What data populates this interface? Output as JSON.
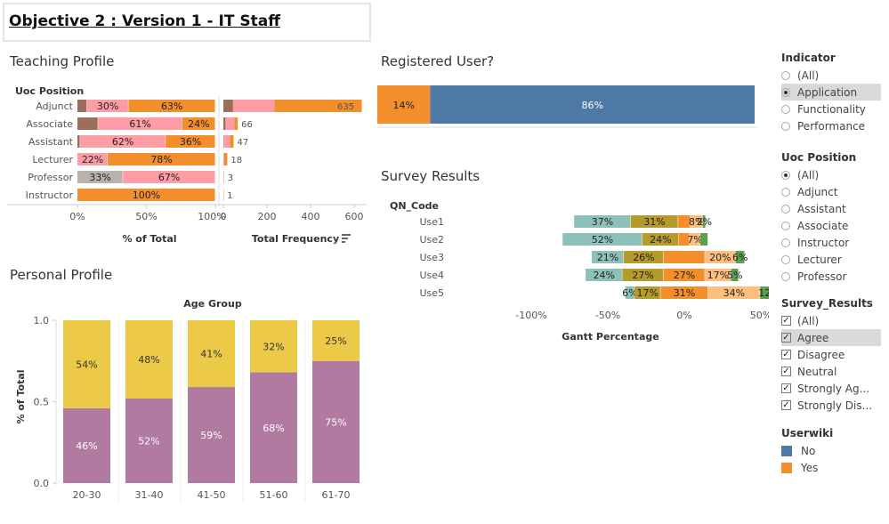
{
  "title": "Objective 2 : Version 1 - IT Staff",
  "teaching": {
    "title": "Teaching Profile",
    "dim_header": "Uoc Position",
    "rows": [
      {
        "label": "Adjunct",
        "segments": [
          {
            "v": 7,
            "c": "#9c6f5d",
            "t": ""
          },
          {
            "v": 30,
            "c": "#ff9da7",
            "t": "30%"
          },
          {
            "v": 63,
            "c": "#f28e2b",
            "t": "63%"
          }
        ],
        "freq": 635,
        "freq_text": "635"
      },
      {
        "label": "Associate",
        "segments": [
          {
            "v": 15,
            "c": "#9c6f5d",
            "t": ""
          },
          {
            "v": 61,
            "c": "#ff9da7",
            "t": "61%"
          },
          {
            "v": 24,
            "c": "#f28e2b",
            "t": "24%"
          }
        ],
        "freq": 66,
        "freq_text": "66"
      },
      {
        "label": "Assistant",
        "segments": [
          {
            "v": 2,
            "c": "#9c6f5d",
            "t": ""
          },
          {
            "v": 62,
            "c": "#ff9da7",
            "t": "62%"
          },
          {
            "v": 36,
            "c": "#f28e2b",
            "t": "36%"
          }
        ],
        "freq": 47,
        "freq_text": "47"
      },
      {
        "label": "Lecturer",
        "segments": [
          {
            "v": 22,
            "c": "#ff9da7",
            "t": "22%"
          },
          {
            "v": 78,
            "c": "#f28e2b",
            "t": "78%"
          }
        ],
        "freq": 18,
        "freq_text": "18"
      },
      {
        "label": "Professor",
        "segments": [
          {
            "v": 33,
            "c": "#bab0ac",
            "t": "33%"
          },
          {
            "v": 67,
            "c": "#ff9da7",
            "t": "67%"
          }
        ],
        "freq": 3,
        "freq_text": "3"
      },
      {
        "label": "Instructor",
        "segments": [
          {
            "v": 100,
            "c": "#f28e2b",
            "t": "100%"
          }
        ],
        "freq": 1,
        "freq_text": "1"
      }
    ],
    "pct_ticks": [
      "0%",
      "50%",
      "100%"
    ],
    "pct_axis_title": "% of Total",
    "freq_ticks": [
      "0",
      "200",
      "400",
      "600"
    ],
    "freq_axis_title": "Total Frequency"
  },
  "registered": {
    "title": "Registered User?",
    "segments": [
      {
        "v": 14,
        "c": "#f28e2b",
        "t": "14%"
      },
      {
        "v": 86,
        "c": "#4e79a7",
        "t": "86%"
      }
    ]
  },
  "survey": {
    "title": "Survey Results",
    "dim_header": "QN_Code",
    "rows": [
      {
        "label": "Use1",
        "segments": [
          {
            "v": 37,
            "c": "#8cc0b9",
            "t": "37%"
          },
          {
            "v": 31,
            "c": "#b59a2c",
            "t": "31%"
          },
          {
            "v": 8,
            "c": "#f28e2b",
            "t": ""
          },
          {
            "v": 8,
            "c": "#ffbe7d",
            "t": "8%"
          },
          {
            "v": 2,
            "c": "#59a14f",
            "t": "2%"
          }
        ]
      },
      {
        "label": "Use2",
        "segments": [
          {
            "v": 52,
            "c": "#8cc0b9",
            "t": "52%"
          },
          {
            "v": 24,
            "c": "#b59a2c",
            "t": "24%"
          },
          {
            "v": 7,
            "c": "#f28e2b",
            "t": ""
          },
          {
            "v": 7,
            "c": "#ffbe7d",
            "t": "7%"
          },
          {
            "v": 5,
            "c": "#59a14f",
            "t": ""
          }
        ]
      },
      {
        "label": "Use3",
        "segments": [
          {
            "v": 21,
            "c": "#8cc0b9",
            "t": "21%"
          },
          {
            "v": 26,
            "c": "#b59a2c",
            "t": "26%"
          },
          {
            "v": 27,
            "c": "#f28e2b",
            "t": ""
          },
          {
            "v": 20,
            "c": "#ffbe7d",
            "t": "20%"
          },
          {
            "v": 6,
            "c": "#59a14f",
            "t": "6%"
          }
        ]
      },
      {
        "label": "Use4",
        "segments": [
          {
            "v": 24,
            "c": "#8cc0b9",
            "t": "24%"
          },
          {
            "v": 27,
            "c": "#b59a2c",
            "t": "27%"
          },
          {
            "v": 27,
            "c": "#f28e2b",
            "t": "27%"
          },
          {
            "v": 17,
            "c": "#ffbe7d",
            "t": "17%"
          },
          {
            "v": 5,
            "c": "#59a14f",
            "t": "5%"
          }
        ]
      },
      {
        "label": "Use5",
        "segments": [
          {
            "v": 6,
            "c": "#8cc0b9",
            "t": "6%"
          },
          {
            "v": 17,
            "c": "#b59a2c",
            "t": "17%"
          },
          {
            "v": 31,
            "c": "#f28e2b",
            "t": "31%"
          },
          {
            "v": 34,
            "c": "#ffbe7d",
            "t": "34%"
          },
          {
            "v": 12,
            "c": "#59a14f",
            "t": "12%"
          }
        ]
      }
    ],
    "ticks": [
      "-100%",
      "-50%",
      "0%",
      "50%"
    ],
    "axis_title": "Gantt Percentage"
  },
  "personal": {
    "title": "Personal Profile",
    "col_header": "Age Group",
    "y_title": "% of Total",
    "y_ticks": [
      "0.0",
      "0.5",
      "1.0"
    ],
    "cats": [
      {
        "label": "20-30",
        "bottom": 46,
        "top": 54
      },
      {
        "label": "31-40",
        "bottom": 52,
        "top": 48
      },
      {
        "label": "41-50",
        "bottom": 59,
        "top": 41
      },
      {
        "label": "51-60",
        "bottom": 68,
        "top": 32
      },
      {
        "label": "61-70",
        "bottom": 75,
        "top": 25
      }
    ],
    "colors": {
      "bottom": "#b07aa1",
      "top": "#edc948"
    }
  },
  "sidebar": {
    "indicator": {
      "title": "Indicator",
      "options": [
        "(All)",
        "Application",
        "Functionality",
        "Performance"
      ],
      "selected": 1
    },
    "uoc": {
      "title": "Uoc Position",
      "options": [
        "(All)",
        "Adjunct",
        "Assistant",
        "Associate",
        "Instructor",
        "Lecturer",
        "Professor"
      ],
      "selected": 0
    },
    "survey": {
      "title": "Survey_Results",
      "options": [
        "(All)",
        "Agree",
        "Disagree",
        "Neutral",
        "Strongly Ag...",
        "Strongly Dis..."
      ],
      "highlight": 1
    },
    "userwiki": {
      "title": "Userwiki",
      "items": [
        {
          "label": "No",
          "color": "#4e79a7"
        },
        {
          "label": "Yes",
          "color": "#f28e2b"
        }
      ]
    }
  }
}
